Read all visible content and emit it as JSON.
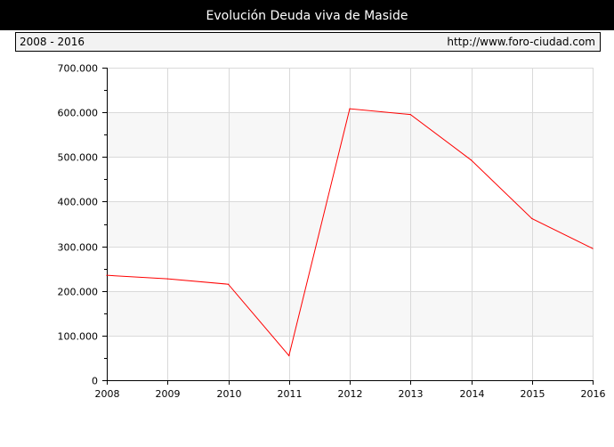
{
  "header": {
    "title": "Evolución Deuda viva de Maside",
    "period": "2008 - 2016",
    "url": "http://www.foro-ciudad.com"
  },
  "colors": {
    "line": "#ff0000",
    "band": "#f7f7f7",
    "grid": "#d9d9d9",
    "axis": "#000000"
  },
  "chart_data": {
    "type": "line",
    "title": "Evolución Deuda viva de Maside",
    "xlabel": "",
    "ylabel": "",
    "x": [
      "2008",
      "2009",
      "2010",
      "2011",
      "2012",
      "2013",
      "2014",
      "2015",
      "2016"
    ],
    "series": [
      {
        "values": [
          235000,
          227000,
          215000,
          55000,
          608000,
          595000,
          493000,
          362000,
          295000
        ]
      }
    ],
    "ylim": [
      0,
      700000
    ],
    "yticks": [
      0,
      100000,
      200000,
      300000,
      400000,
      500000,
      600000,
      700000
    ],
    "ytick_labels": [
      "0",
      "100.000",
      "200.000",
      "300.000",
      "400.000",
      "500.000",
      "600.000",
      "700.000"
    ],
    "grid": true
  }
}
